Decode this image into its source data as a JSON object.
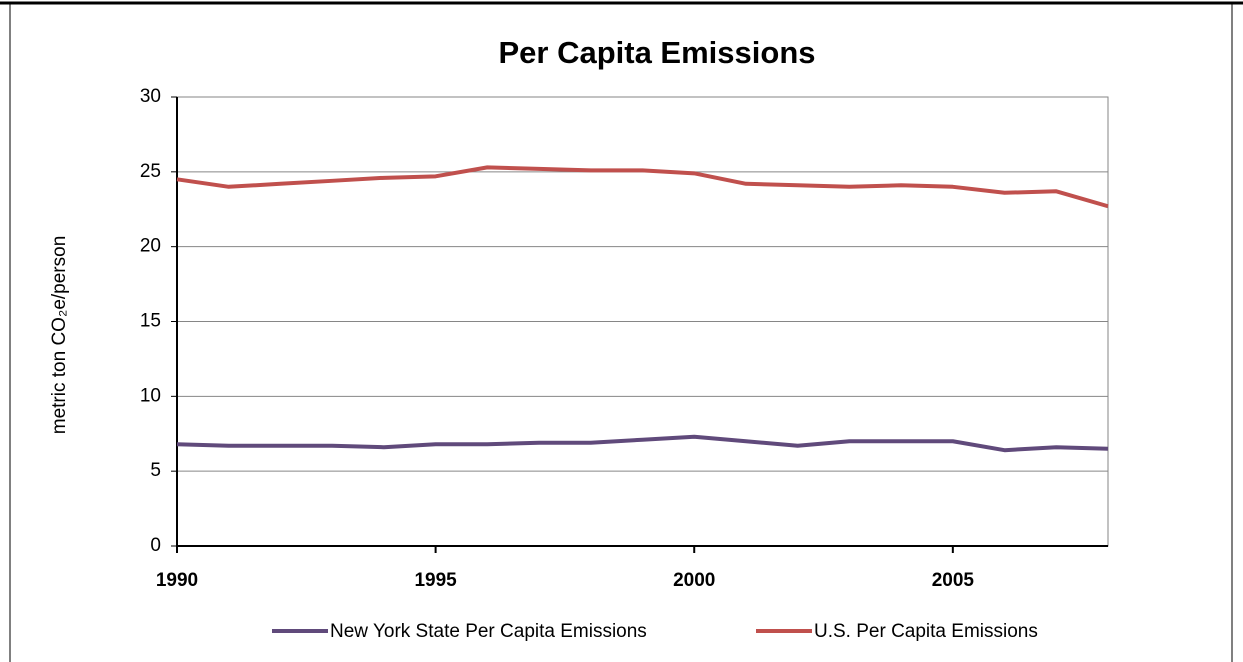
{
  "chart_data": {
    "type": "line",
    "title": "Per Capita Emissions",
    "y_label": "metric ton CO₂e/person",
    "x": [
      1990,
      1991,
      1992,
      1993,
      1994,
      1995,
      1996,
      1997,
      1998,
      1999,
      2000,
      2001,
      2002,
      2003,
      2004,
      2005,
      2006,
      2007,
      2008
    ],
    "series": [
      {
        "name": "New York State Per Capita Emissions",
        "color": "#604a7b",
        "values": [
          6.8,
          6.7,
          6.7,
          6.7,
          6.6,
          6.8,
          6.8,
          6.9,
          6.9,
          7.1,
          7.3,
          7.0,
          6.7,
          7.0,
          7.0,
          7.0,
          6.4,
          6.6,
          6.5
        ]
      },
      {
        "name": "U.S. Per Capita Emissions",
        "color": "#c0504d",
        "values": [
          24.5,
          24.0,
          24.2,
          24.4,
          24.6,
          24.7,
          25.3,
          25.2,
          25.1,
          25.1,
          24.9,
          24.2,
          24.1,
          24.0,
          24.1,
          24.0,
          23.6,
          23.7,
          22.7
        ]
      }
    ],
    "xlim": [
      1990,
      2008
    ],
    "xticks": [
      1990,
      1995,
      2000,
      2005
    ],
    "ylim": [
      0,
      30
    ],
    "yticks": [
      0,
      5,
      10,
      15,
      20,
      25,
      30
    ],
    "grid": true,
    "legend": "bottom"
  }
}
